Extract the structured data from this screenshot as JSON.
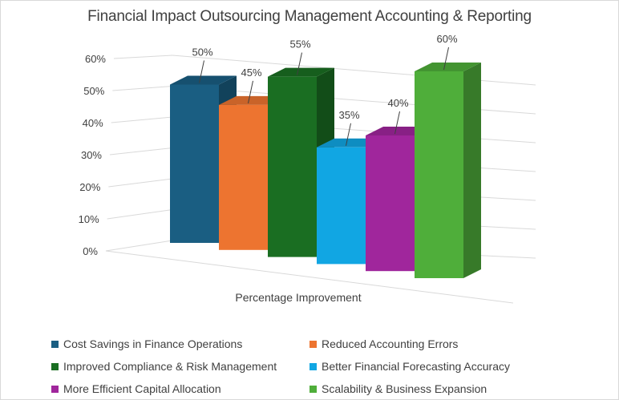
{
  "chart_data": {
    "type": "bar",
    "title": "Financial Impact Outsourcing Management Accounting & Reporting",
    "categories": [
      "Percentage Improvement"
    ],
    "xlabel": "Percentage Improvement",
    "ylabel": "",
    "ylim": [
      0,
      60
    ],
    "yticks": [
      "0%",
      "10%",
      "20%",
      "30%",
      "40%",
      "50%",
      "60%"
    ],
    "grid": true,
    "legend_position": "bottom",
    "series": [
      {
        "name": "Cost Savings in Finance Operations",
        "values": [
          50
        ],
        "label": "50%",
        "color": "#1a5e82"
      },
      {
        "name": "Reduced Accounting Errors",
        "values": [
          45
        ],
        "label": "45%",
        "color": "#ed7430"
      },
      {
        "name": "Improved Compliance & Risk Management",
        "values": [
          55
        ],
        "label": "55%",
        "color": "#1a6e22"
      },
      {
        "name": "Better Financial Forecasting Accuracy",
        "values": [
          35
        ],
        "label": "35%",
        "color": "#11a6e3"
      },
      {
        "name": "More Efficient Capital Allocation",
        "values": [
          40
        ],
        "label": "40%",
        "color": "#a0269c"
      },
      {
        "name": "Scalability & Business Expansion",
        "values": [
          60
        ],
        "label": "60%",
        "color": "#4fae3a"
      }
    ]
  }
}
